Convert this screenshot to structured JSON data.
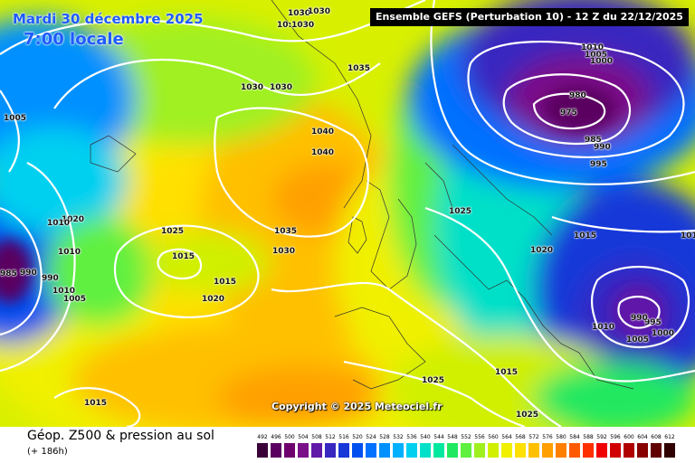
{
  "header": {
    "date": "Mardi 30 décembre 2025",
    "time": "7:00 locale",
    "run": "Ensemble GEFS  (Perturbation 10)  -  12 Z du 22/12/2025"
  },
  "copyright": "Copyright © 2025 Meteociel.fr",
  "footer": {
    "title": "Géop. Z500 & pression au sol",
    "subtitle": "(+ 186h)"
  },
  "isobar_labels": [
    "1030",
    "1030",
    "10:1030",
    "1035",
    "1030",
    "1030",
    "1040",
    "1040",
    "1005",
    "1010",
    "1005",
    "1000",
    "980",
    "975",
    "985",
    "990",
    "995",
    "1020",
    "1010",
    "1010",
    "990",
    "985",
    "990",
    "1010",
    "1005",
    "1025",
    "1015",
    "1015",
    "1020",
    "1035",
    "1030",
    "1025",
    "1015",
    "1020",
    "1025",
    "1025",
    "1015",
    "995",
    "1000",
    "990",
    "1010",
    "1005",
    "101",
    "1015"
  ],
  "legend": {
    "values": [
      "492",
      "496",
      "500",
      "504",
      "508",
      "512",
      "516",
      "520",
      "524",
      "528",
      "532",
      "536",
      "540",
      "544",
      "548",
      "552",
      "556",
      "560",
      "564",
      "568",
      "572",
      "576",
      "580",
      "584",
      "588",
      "592",
      "596",
      "600",
      "604",
      "608",
      "612"
    ],
    "colors": [
      "#3a0038",
      "#5a0060",
      "#6e006e",
      "#7a1088",
      "#6018a8",
      "#3828c0",
      "#1838d8",
      "#0050f0",
      "#0070ff",
      "#0090ff",
      "#00b0ff",
      "#00d0f0",
      "#00e0c8",
      "#00e8a0",
      "#20e860",
      "#60f040",
      "#a0f020",
      "#d0f000",
      "#f0f000",
      "#ffe000",
      "#ffc000",
      "#ffa000",
      "#ff8000",
      "#ff5a00",
      "#ff3000",
      "#f00000",
      "#d00000",
      "#b00000",
      "#880000",
      "#600000",
      "#300000"
    ]
  }
}
